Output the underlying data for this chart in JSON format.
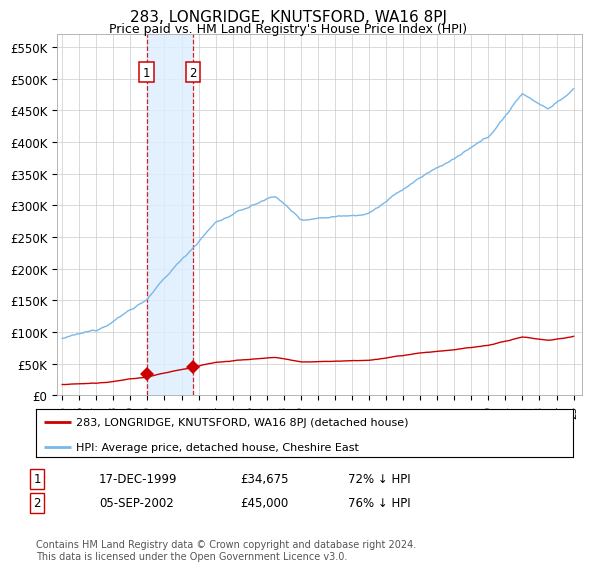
{
  "title": "283, LONGRIDGE, KNUTSFORD, WA16 8PJ",
  "subtitle": "Price paid vs. HM Land Registry's House Price Index (HPI)",
  "ylabel_ticks": [
    "£0",
    "£50K",
    "£100K",
    "£150K",
    "£200K",
    "£250K",
    "£300K",
    "£350K",
    "£400K",
    "£450K",
    "£500K",
    "£550K"
  ],
  "ylim": [
    0,
    570000
  ],
  "xlim_start": 1994.7,
  "xlim_end": 2025.5,
  "sale1_date": 1999.96,
  "sale1_price": 34675,
  "sale2_date": 2002.67,
  "sale2_price": 45000,
  "hpi_color": "#7ab8e8",
  "sale_color": "#cc0000",
  "vline_color": "#cc0000",
  "shade_color": "#ddeeff",
  "legend_line1": "283, LONGRIDGE, KNUTSFORD, WA16 8PJ (detached house)",
  "legend_line2": "HPI: Average price, detached house, Cheshire East",
  "table_row1_date": "17-DEC-1999",
  "table_row1_price": "£34,675",
  "table_row1_hpi": "72% ↓ HPI",
  "table_row2_date": "05-SEP-2002",
  "table_row2_price": "£45,000",
  "table_row2_hpi": "76% ↓ HPI",
  "footnote": "Contains HM Land Registry data © Crown copyright and database right 2024.\nThis data is licensed under the Open Government Licence v3.0.",
  "background_color": "#ffffff",
  "grid_color": "#cccccc"
}
